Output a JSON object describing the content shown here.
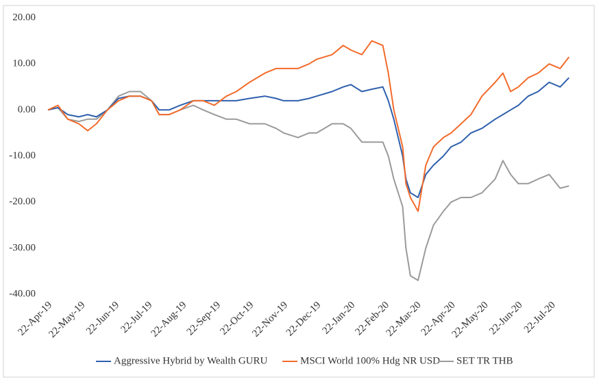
{
  "chart_data": {
    "type": "line",
    "x": [
      "2019-04-22",
      "2019-05-01",
      "2019-05-10",
      "2019-05-20",
      "2019-05-28",
      "2019-06-05",
      "2019-06-15",
      "2019-06-25",
      "2019-07-05",
      "2019-07-15",
      "2019-07-25",
      "2019-08-01",
      "2019-08-10",
      "2019-08-20",
      "2019-09-01",
      "2019-09-10",
      "2019-09-20",
      "2019-10-01",
      "2019-10-10",
      "2019-10-22",
      "2019-11-05",
      "2019-11-15",
      "2019-11-22",
      "2019-12-05",
      "2019-12-15",
      "2019-12-22",
      "2020-01-05",
      "2020-01-15",
      "2020-01-22",
      "2020-02-01",
      "2020-02-10",
      "2020-02-20",
      "2020-02-25",
      "2020-03-01",
      "2020-03-09",
      "2020-03-12",
      "2020-03-16",
      "2020-03-23",
      "2020-03-30",
      "2020-04-06",
      "2020-04-15",
      "2020-04-22",
      "2020-05-01",
      "2020-05-10",
      "2020-05-20",
      "2020-06-01",
      "2020-06-08",
      "2020-06-15",
      "2020-06-22",
      "2020-07-01",
      "2020-07-10",
      "2020-07-20",
      "2020-07-30",
      "2020-08-07"
    ],
    "series": [
      {
        "name": "Aggressive Hybrid by Wealth GURU",
        "color": "#2e5fad",
        "values": [
          0,
          0.5,
          -1,
          -1.5,
          -1,
          -1.5,
          0,
          2.5,
          3,
          3,
          2,
          0,
          0,
          1,
          2,
          2,
          2,
          2,
          2,
          2.5,
          3,
          2.5,
          2,
          2,
          2.5,
          3,
          4,
          5,
          5.5,
          4,
          4.5,
          5,
          2,
          -2,
          -10,
          -15,
          -18,
          -19,
          -14,
          -12,
          -10,
          -8,
          -7,
          -5,
          -4,
          -2,
          -1,
          0,
          1,
          3,
          4,
          6,
          5,
          7
        ]
      },
      {
        "name": "MSCI World 100% Hdg NR USD",
        "color": "#f26b2a",
        "values": [
          0,
          1,
          -2,
          -3,
          -4.5,
          -3,
          0,
          2,
          3,
          3,
          2,
          -1,
          -1,
          0,
          2,
          2,
          1,
          3,
          4,
          6,
          8,
          9,
          9,
          9,
          10,
          11,
          12,
          14,
          13,
          12,
          15,
          14,
          8,
          0,
          -8,
          -16,
          -19,
          -22,
          -12,
          -8,
          -6,
          -5,
          -3,
          -1,
          3,
          6,
          8,
          4,
          5,
          7,
          8,
          10,
          9,
          11.5
        ]
      },
      {
        "name": "SET TR THB",
        "color": "#9a9a9a",
        "values": [
          0,
          0.5,
          -2,
          -2.5,
          -2,
          -2,
          0,
          3,
          4,
          4,
          2,
          -1,
          -1,
          0,
          1,
          0,
          -1,
          -2,
          -2,
          -3,
          -3,
          -4,
          -5,
          -6,
          -5,
          -5,
          -3,
          -3,
          -4,
          -7,
          -7,
          -7,
          -10,
          -15,
          -21,
          -30,
          -36,
          -37,
          -30,
          -25,
          -22,
          -20,
          -19,
          -19,
          -18,
          -15,
          -11,
          -14,
          -16,
          -16,
          -15,
          -14,
          -17,
          -16.5
        ]
      }
    ],
    "xlim": [
      "2019-04-22",
      "2020-08-10"
    ],
    "xticks": [
      {
        "value": "2019-04-22",
        "label": "22-Apr-19"
      },
      {
        "value": "2019-05-22",
        "label": "22-May-19"
      },
      {
        "value": "2019-06-22",
        "label": "22-Jun-19"
      },
      {
        "value": "2019-07-22",
        "label": "22-Jul-19"
      },
      {
        "value": "2019-08-22",
        "label": "22-Aug-19"
      },
      {
        "value": "2019-09-22",
        "label": "22-Sep-19"
      },
      {
        "value": "2019-10-22",
        "label": "22-Oct-19"
      },
      {
        "value": "2019-11-22",
        "label": "22-Nov-19"
      },
      {
        "value": "2019-12-22",
        "label": "22-Dec-19"
      },
      {
        "value": "2020-01-22",
        "label": "22-Jan-20"
      },
      {
        "value": "2020-02-22",
        "label": "22-Feb-20"
      },
      {
        "value": "2020-03-22",
        "label": "22-Mar-20"
      },
      {
        "value": "2020-04-22",
        "label": "22-Apr-20"
      },
      {
        "value": "2020-05-22",
        "label": "22-May-20"
      },
      {
        "value": "2020-06-22",
        "label": "22-Jun-20"
      },
      {
        "value": "2020-07-22",
        "label": "22-Jul-20"
      }
    ],
    "ylim": [
      -40,
      20
    ],
    "yticks": [
      {
        "value": 20,
        "label": "20.00"
      },
      {
        "value": 10,
        "label": "10.00"
      },
      {
        "value": 0,
        "label": "0.00"
      },
      {
        "value": -10,
        "label": "-10.00"
      },
      {
        "value": -20,
        "label": "-20.00"
      },
      {
        "value": -30,
        "label": "-30.00"
      },
      {
        "value": -40,
        "label": "-40.00"
      }
    ],
    "grid": false,
    "legend": "bottom"
  }
}
